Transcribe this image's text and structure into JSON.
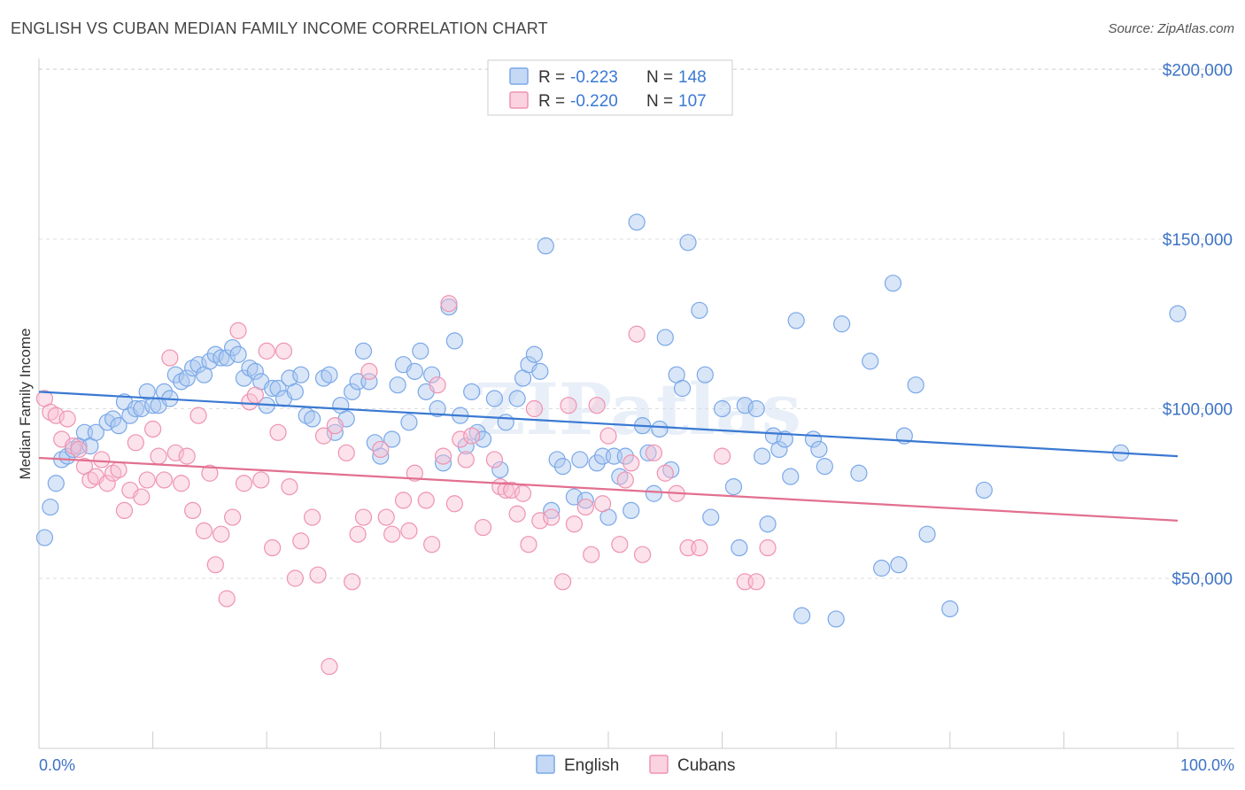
{
  "header": {
    "title": "ENGLISH VS CUBAN MEDIAN FAMILY INCOME CORRELATION CHART",
    "source": "Source: ZipAtlas.com"
  },
  "legend_box": {
    "r_label": "R =",
    "n_label": "N =",
    "rows": [
      {
        "r": "-0.223",
        "n": "148",
        "color": "#7aa8e8",
        "fill": "#c5d9f5"
      },
      {
        "r": "-0.220",
        "n": "107",
        "color": "#ee93b1",
        "fill": "#fbd3e0"
      }
    ]
  },
  "watermark": "ZIPatlas",
  "colors": {
    "blue": "#3a79d2",
    "pink": "#e2708f",
    "blue_point": "#7aa8e8",
    "pink_point": "#ee93b1",
    "axis_text": "#3d73c6"
  },
  "chart_data": {
    "type": "scatter",
    "title": "ENGLISH VS CUBAN MEDIAN FAMILY INCOME CORRELATION CHART",
    "ylabel": "Median Family Income",
    "xlabel": "",
    "x_tick_labels": [
      "0.0%",
      "100.0%"
    ],
    "y_tick_labels": [
      "$50,000",
      "$100,000",
      "$150,000",
      "$200,000"
    ],
    "y_ticks": [
      50000,
      100000,
      150000,
      200000
    ],
    "xlim": [
      0,
      100
    ],
    "ylim": [
      5000,
      205000
    ],
    "grid": "horizontal dashed",
    "legend_position": "bottom-center",
    "series": [
      {
        "name": "English",
        "color": "#7aa8e8",
        "trend": {
          "x": [
            0,
            100
          ],
          "y": [
            105000,
            86000
          ]
        },
        "points": [
          [
            0.5,
            62000
          ],
          [
            1,
            71000
          ],
          [
            1.5,
            78000
          ],
          [
            2,
            85000
          ],
          [
            2.5,
            86000
          ],
          [
            3,
            88000
          ],
          [
            3.5,
            89000
          ],
          [
            4,
            93000
          ],
          [
            4.5,
            89000
          ],
          [
            5,
            93000
          ],
          [
            6,
            96000
          ],
          [
            6.5,
            97000
          ],
          [
            7,
            95000
          ],
          [
            7.5,
            102000
          ],
          [
            8,
            98000
          ],
          [
            8.5,
            100000
          ],
          [
            9,
            100000
          ],
          [
            9.5,
            105000
          ],
          [
            10,
            101000
          ],
          [
            10.5,
            101000
          ],
          [
            11,
            105000
          ],
          [
            11.5,
            103000
          ],
          [
            12,
            110000
          ],
          [
            12.5,
            108000
          ],
          [
            13,
            109000
          ],
          [
            13.5,
            112000
          ],
          [
            14,
            113000
          ],
          [
            14.5,
            110000
          ],
          [
            15,
            114000
          ],
          [
            15.5,
            116000
          ],
          [
            16,
            115000
          ],
          [
            16.5,
            115000
          ],
          [
            17,
            118000
          ],
          [
            17.5,
            116000
          ],
          [
            18,
            109000
          ],
          [
            18.5,
            112000
          ],
          [
            19,
            111000
          ],
          [
            19.5,
            108000
          ],
          [
            20,
            101000
          ],
          [
            20.5,
            106000
          ],
          [
            21,
            106000
          ],
          [
            21.5,
            103000
          ],
          [
            22,
            109000
          ],
          [
            22.5,
            105000
          ],
          [
            23,
            110000
          ],
          [
            23.5,
            98000
          ],
          [
            24,
            97000
          ],
          [
            25,
            109000
          ],
          [
            25.5,
            110000
          ],
          [
            26,
            93000
          ],
          [
            26.5,
            101000
          ],
          [
            27,
            97000
          ],
          [
            27.5,
            105000
          ],
          [
            28,
            108000
          ],
          [
            28.5,
            117000
          ],
          [
            29,
            108000
          ],
          [
            29.5,
            90000
          ],
          [
            30,
            86000
          ],
          [
            31,
            91000
          ],
          [
            31.5,
            107000
          ],
          [
            32,
            113000
          ],
          [
            32.5,
            96000
          ],
          [
            33,
            111000
          ],
          [
            33.5,
            117000
          ],
          [
            34,
            105000
          ],
          [
            34.5,
            110000
          ],
          [
            35,
            100000
          ],
          [
            35.5,
            84000
          ],
          [
            36,
            130000
          ],
          [
            36.5,
            120000
          ],
          [
            37,
            98000
          ],
          [
            37.5,
            89000
          ],
          [
            38,
            105000
          ],
          [
            38.5,
            93000
          ],
          [
            39,
            91000
          ],
          [
            40,
            103000
          ],
          [
            40.5,
            82000
          ],
          [
            41,
            96000
          ],
          [
            42,
            103000
          ],
          [
            42.5,
            109000
          ],
          [
            43,
            113000
          ],
          [
            43.5,
            116000
          ],
          [
            44,
            111000
          ],
          [
            44.5,
            148000
          ],
          [
            45,
            70000
          ],
          [
            45.5,
            85000
          ],
          [
            46,
            83000
          ],
          [
            47,
            74000
          ],
          [
            47.5,
            85000
          ],
          [
            48,
            73000
          ],
          [
            49,
            84000
          ],
          [
            49.5,
            86000
          ],
          [
            50,
            68000
          ],
          [
            50.5,
            86000
          ],
          [
            51,
            80000
          ],
          [
            51.5,
            86000
          ],
          [
            52,
            70000
          ],
          [
            52.5,
            155000
          ],
          [
            53,
            95000
          ],
          [
            53.5,
            87000
          ],
          [
            54,
            75000
          ],
          [
            54.5,
            94000
          ],
          [
            55,
            121000
          ],
          [
            55.5,
            82000
          ],
          [
            56,
            110000
          ],
          [
            56.5,
            106000
          ],
          [
            57,
            149000
          ],
          [
            58,
            129000
          ],
          [
            58.5,
            110000
          ],
          [
            59,
            68000
          ],
          [
            60,
            100000
          ],
          [
            61,
            77000
          ],
          [
            61.5,
            59000
          ],
          [
            62,
            101000
          ],
          [
            63,
            100000
          ],
          [
            63.5,
            86000
          ],
          [
            64,
            66000
          ],
          [
            64.5,
            92000
          ],
          [
            65,
            88000
          ],
          [
            65.5,
            91000
          ],
          [
            66,
            80000
          ],
          [
            66.5,
            126000
          ],
          [
            67,
            39000
          ],
          [
            68,
            91000
          ],
          [
            68.5,
            88000
          ],
          [
            69,
            83000
          ],
          [
            70,
            38000
          ],
          [
            70.5,
            125000
          ],
          [
            72,
            81000
          ],
          [
            73,
            114000
          ],
          [
            74,
            53000
          ],
          [
            75,
            137000
          ],
          [
            75.5,
            54000
          ],
          [
            76,
            92000
          ],
          [
            77,
            107000
          ],
          [
            78,
            63000
          ],
          [
            80,
            41000
          ],
          [
            83,
            76000
          ],
          [
            95,
            87000
          ],
          [
            100,
            128000
          ]
        ]
      },
      {
        "name": "Cubans",
        "color": "#ee93b1",
        "trend": {
          "x": [
            0,
            100
          ],
          "y": [
            85500,
            67000
          ]
        },
        "points": [
          [
            0.5,
            103000
          ],
          [
            1,
            99000
          ],
          [
            1.5,
            98000
          ],
          [
            2,
            91000
          ],
          [
            2.5,
            97000
          ],
          [
            3,
            89000
          ],
          [
            3.5,
            88000
          ],
          [
            4,
            83000
          ],
          [
            4.5,
            79000
          ],
          [
            5,
            80000
          ],
          [
            5.5,
            85000
          ],
          [
            6,
            78000
          ],
          [
            6.5,
            81000
          ],
          [
            7,
            82000
          ],
          [
            7.5,
            70000
          ],
          [
            8,
            76000
          ],
          [
            8.5,
            90000
          ],
          [
            9,
            74000
          ],
          [
            9.5,
            79000
          ],
          [
            10,
            94000
          ],
          [
            10.5,
            86000
          ],
          [
            11,
            79000
          ],
          [
            11.5,
            115000
          ],
          [
            12,
            87000
          ],
          [
            12.5,
            78000
          ],
          [
            13,
            86000
          ],
          [
            13.5,
            70000
          ],
          [
            14,
            98000
          ],
          [
            14.5,
            64000
          ],
          [
            15,
            81000
          ],
          [
            15.5,
            54000
          ],
          [
            16,
            63000
          ],
          [
            16.5,
            44000
          ],
          [
            17,
            68000
          ],
          [
            17.5,
            123000
          ],
          [
            18,
            78000
          ],
          [
            18.5,
            102000
          ],
          [
            19,
            104000
          ],
          [
            19.5,
            79000
          ],
          [
            20,
            117000
          ],
          [
            20.5,
            59000
          ],
          [
            21,
            93000
          ],
          [
            21.5,
            117000
          ],
          [
            22,
            77000
          ],
          [
            22.5,
            50000
          ],
          [
            23,
            61000
          ],
          [
            24,
            68000
          ],
          [
            24.5,
            51000
          ],
          [
            25,
            92000
          ],
          [
            25.5,
            24000
          ],
          [
            26,
            95000
          ],
          [
            27,
            87000
          ],
          [
            27.5,
            49000
          ],
          [
            28,
            63000
          ],
          [
            28.5,
            68000
          ],
          [
            29,
            111000
          ],
          [
            30,
            88000
          ],
          [
            30.5,
            68000
          ],
          [
            31,
            63000
          ],
          [
            32,
            73000
          ],
          [
            32.5,
            64000
          ],
          [
            33,
            81000
          ],
          [
            34,
            73000
          ],
          [
            34.5,
            60000
          ],
          [
            35,
            107000
          ],
          [
            35.5,
            86000
          ],
          [
            36,
            131000
          ],
          [
            36.5,
            72000
          ],
          [
            37,
            91000
          ],
          [
            37.5,
            85000
          ],
          [
            38,
            92000
          ],
          [
            39,
            65000
          ],
          [
            40,
            85000
          ],
          [
            40.5,
            77000
          ],
          [
            41,
            76000
          ],
          [
            41.5,
            76000
          ],
          [
            42,
            69000
          ],
          [
            42.5,
            75000
          ],
          [
            43,
            60000
          ],
          [
            43.5,
            100000
          ],
          [
            44,
            67000
          ],
          [
            45,
            68000
          ],
          [
            46,
            49000
          ],
          [
            46.5,
            101000
          ],
          [
            47,
            66000
          ],
          [
            48,
            71000
          ],
          [
            48.5,
            57000
          ],
          [
            49,
            101000
          ],
          [
            49.5,
            72000
          ],
          [
            50,
            92000
          ],
          [
            51,
            60000
          ],
          [
            51.5,
            79000
          ],
          [
            52,
            84000
          ],
          [
            52.5,
            122000
          ],
          [
            53,
            57000
          ],
          [
            54,
            87000
          ],
          [
            55,
            81000
          ],
          [
            56,
            75000
          ],
          [
            57,
            59000
          ],
          [
            58,
            59000
          ],
          [
            60,
            86000
          ],
          [
            62,
            49000
          ],
          [
            63,
            49000
          ],
          [
            64,
            59000
          ]
        ]
      }
    ]
  }
}
